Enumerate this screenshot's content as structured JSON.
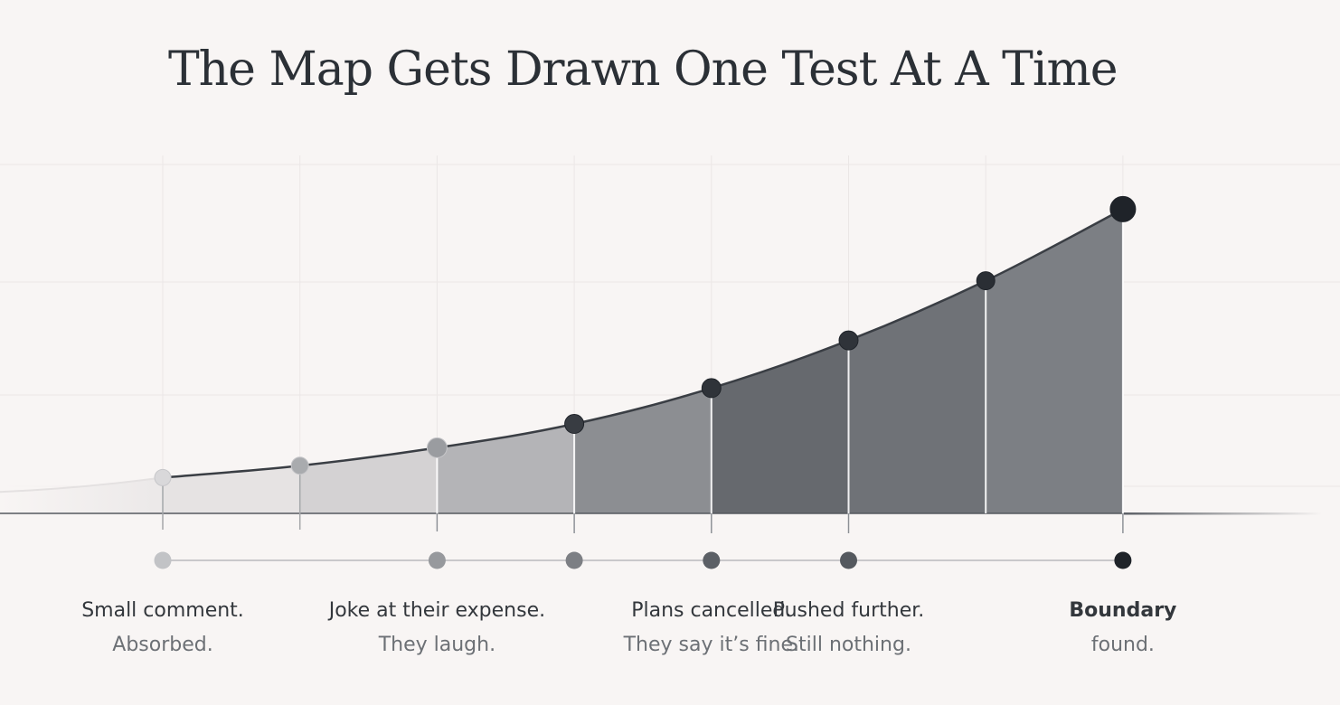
{
  "chart_data": {
    "type": "area",
    "title": "The Map Gets Drawn One Test At A Time",
    "xlabel": "",
    "ylabel": "",
    "grid": true,
    "legend": "none",
    "x": [
      1,
      2,
      3,
      4,
      5,
      6,
      7,
      8
    ],
    "values": [
      12,
      16,
      22,
      30,
      42,
      58,
      78,
      102
    ],
    "ylim": [
      0,
      110
    ],
    "annotations": [
      {
        "x": 1,
        "label": "Small comment.",
        "sublabel": "Absorbed.",
        "emphasis": false
      },
      {
        "x": 3,
        "label": "Joke at their expense.",
        "sublabel": "They laugh.",
        "emphasis": false
      },
      {
        "x": 5,
        "label": "Plans cancelled.",
        "sublabel": "They say it’s fine.",
        "emphasis": false
      },
      {
        "x": 6,
        "label": "Pushed further.",
        "sublabel": "Still nothing.",
        "emphasis": false
      },
      {
        "x": 8,
        "label": "Boundary",
        "sublabel": "found.",
        "emphasis": true
      }
    ],
    "track_markers": [
      1,
      3,
      4,
      5,
      6,
      8
    ]
  },
  "colors": {
    "background": "#f8f5f4",
    "title": "#2b3036",
    "curve": "#3a3e44",
    "final_point": "#1f2329",
    "grid": "#ebe7e6"
  }
}
